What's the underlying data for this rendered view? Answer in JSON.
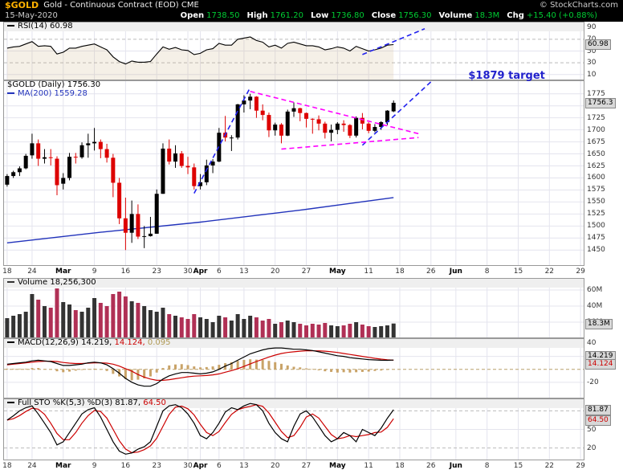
{
  "colors": {
    "up": "#000000",
    "down": "#dd0000",
    "vol_up": "#333333",
    "vol_down": "#b03055",
    "ma": "#2233bb",
    "macd_line": "#000000",
    "macd_signal": "#cc0000",
    "hist": "#c9a368",
    "k": "#000000",
    "d": "#cc0000",
    "grid": "#e4e4ee",
    "dashed_grid": "#bbbbbb",
    "annotation_blue": "#2222ee",
    "annotation_magenta": "#ff00ff",
    "target_text": "#2222cc",
    "header_bg": "#000000",
    "symbol": "#ffb200",
    "quote_value": "#00cc33",
    "box_bg": "#d8d8d8"
  },
  "header": {
    "symbol": "$GOLD",
    "title": "Gold - Continuous Contract (EOD) CME",
    "copyright": "© StockCharts.com",
    "date": "15-May-2020",
    "quote": [
      {
        "label": "Open",
        "value": "1738.50"
      },
      {
        "label": "High",
        "value": "1761.20"
      },
      {
        "label": "Low",
        "value": "1736.80"
      },
      {
        "label": "Close",
        "value": "1756.30"
      },
      {
        "label": "Volume",
        "value": "18.3M"
      },
      {
        "label": "Chg",
        "value": "+15.40 (+0.88%)"
      }
    ]
  },
  "xaxis": {
    "total_slots": 93,
    "ticks": [
      {
        "label": "18",
        "day": 0
      },
      {
        "label": "24",
        "day": 4
      },
      {
        "label": "Mar",
        "day": 9,
        "bold": true
      },
      {
        "label": "9",
        "day": 14
      },
      {
        "label": "16",
        "day": 19
      },
      {
        "label": "23",
        "day": 24
      },
      {
        "label": "30",
        "day": 29
      },
      {
        "label": "Apr",
        "day": 31,
        "bold": true
      },
      {
        "label": "6",
        "day": 34
      },
      {
        "label": "13",
        "day": 38
      },
      {
        "label": "20",
        "day": 43
      },
      {
        "label": "27",
        "day": 48
      },
      {
        "label": "May",
        "day": 53,
        "bold": true
      },
      {
        "label": "11",
        "day": 58
      },
      {
        "label": "18",
        "day": 63
      },
      {
        "label": "26",
        "day": 68
      },
      {
        "label": "Jun",
        "day": 72,
        "bold": true
      },
      {
        "label": "8",
        "day": 77
      },
      {
        "label": "15",
        "day": 82
      },
      {
        "label": "22",
        "day": 87
      },
      {
        "label": "29",
        "day": 92
      }
    ]
  },
  "chart_data": [
    {
      "id": "rsi",
      "type": "line",
      "name": "RSI(14)",
      "ylim": [
        0,
        100
      ],
      "yticks": [
        90,
        70,
        50,
        30,
        10
      ],
      "dashed_levels": [
        70,
        30
      ],
      "last_value": 60.98,
      "last_box": "60.98",
      "legend": [
        {
          "sw": "#000000",
          "parts": [
            {
              "t": "RSI(14) ",
              "c": "#000000"
            },
            {
              "t": "60.98",
              "c": "#000000"
            }
          ]
        }
      ],
      "values": [
        55,
        57,
        58,
        62,
        66,
        58,
        59,
        58,
        45,
        48,
        55,
        55,
        58,
        60,
        62,
        57,
        52,
        40,
        32,
        28,
        33,
        31,
        31,
        32,
        45,
        57,
        53,
        56,
        52,
        51,
        44,
        46,
        52,
        54,
        63,
        60,
        60,
        70,
        72,
        74,
        68,
        65,
        57,
        60,
        55,
        63,
        65,
        62,
        59,
        59,
        57,
        52,
        54,
        57,
        55,
        50,
        58,
        54,
        50,
        52,
        55,
        60,
        60.98
      ],
      "trendlines": [
        {
          "from": {
            "x": 57,
            "y": 44
          },
          "to": {
            "x": 67,
            "y": 88
          },
          "color": "#2222ee"
        }
      ]
    },
    {
      "id": "price",
      "type": "candlestick",
      "name": "$GOLD Daily",
      "ylim": [
        1417,
        1803
      ],
      "yticks": [
        1775,
        1750,
        1725,
        1700,
        1675,
        1650,
        1625,
        1600,
        1575,
        1550,
        1525,
        1500,
        1475,
        1450
      ],
      "last_value": 1756.3,
      "last_box": "1756.3",
      "legend": [
        {
          "parts": [
            {
              "t": "$GOLD (Daily) ",
              "c": "#000000"
            },
            {
              "t": "1756.30",
              "c": "#000000"
            }
          ]
        },
        {
          "sw": "#2233bb",
          "parts": [
            {
              "t": "MA(200) ",
              "c": "#2233bb"
            },
            {
              "t": "1559.28",
              "c": "#2233bb"
            }
          ]
        }
      ],
      "dates": [
        "02-18",
        "02-19",
        "02-20",
        "02-21",
        "02-24",
        "02-25",
        "02-26",
        "02-27",
        "02-28",
        "03-02",
        "03-03",
        "03-04",
        "03-05",
        "03-06",
        "03-09",
        "03-10",
        "03-11",
        "03-12",
        "03-13",
        "03-16",
        "03-17",
        "03-18",
        "03-19",
        "03-20",
        "03-23",
        "03-24",
        "03-25",
        "03-26",
        "03-27",
        "03-30",
        "03-31",
        "04-01",
        "04-02",
        "04-03",
        "04-06",
        "04-07",
        "04-08",
        "04-09",
        "04-13",
        "04-14",
        "04-15",
        "04-16",
        "04-17",
        "04-20",
        "04-21",
        "04-22",
        "04-23",
        "04-24",
        "04-27",
        "04-28",
        "04-29",
        "04-30",
        "05-01",
        "05-04",
        "05-05",
        "05-06",
        "05-07",
        "05-08",
        "05-11",
        "05-12",
        "05-13",
        "05-14",
        "05-15"
      ],
      "ohlc": [
        [
          1586,
          1608,
          1582,
          1604
        ],
        [
          1604,
          1615,
          1600,
          1612
        ],
        [
          1612,
          1624,
          1604,
          1620
        ],
        [
          1620,
          1650,
          1618,
          1646
        ],
        [
          1647,
          1692,
          1640,
          1672
        ],
        [
          1672,
          1680,
          1625,
          1640
        ],
        [
          1640,
          1660,
          1630,
          1643
        ],
        [
          1643,
          1660,
          1626,
          1642
        ],
        [
          1640,
          1645,
          1564,
          1585
        ],
        [
          1588,
          1610,
          1576,
          1600
        ],
        [
          1600,
          1652,
          1595,
          1644
        ],
        [
          1644,
          1652,
          1630,
          1643
        ],
        [
          1643,
          1674,
          1640,
          1668
        ],
        [
          1668,
          1692,
          1642,
          1672
        ],
        [
          1672,
          1704,
          1657,
          1675
        ],
        [
          1675,
          1680,
          1641,
          1660
        ],
        [
          1660,
          1671,
          1632,
          1642
        ],
        [
          1642,
          1650,
          1560,
          1590
        ],
        [
          1590,
          1600,
          1504,
          1516
        ],
        [
          1516,
          1559,
          1450,
          1486
        ],
        [
          1486,
          1553,
          1465,
          1525
        ],
        [
          1525,
          1545,
          1473,
          1478
        ],
        [
          1478,
          1500,
          1454,
          1479
        ],
        [
          1479,
          1519,
          1478,
          1484
        ],
        [
          1484,
          1576,
          1484,
          1567
        ],
        [
          1567,
          1672,
          1567,
          1661
        ],
        [
          1661,
          1680,
          1628,
          1634
        ],
        [
          1634,
          1668,
          1621,
          1651
        ],
        [
          1651,
          1656,
          1621,
          1625
        ],
        [
          1625,
          1644,
          1608,
          1622
        ],
        [
          1622,
          1630,
          1576,
          1583
        ],
        [
          1583,
          1608,
          1576,
          1591
        ],
        [
          1591,
          1638,
          1585,
          1626
        ],
        [
          1626,
          1639,
          1610,
          1634
        ],
        [
          1634,
          1704,
          1633,
          1694
        ],
        [
          1694,
          1729,
          1676,
          1684
        ],
        [
          1684,
          1689,
          1656,
          1684
        ],
        [
          1684,
          1754,
          1680,
          1753
        ],
        [
          1753,
          1772,
          1736,
          1761
        ],
        [
          1761,
          1775,
          1743,
          1769
        ],
        [
          1769,
          1770,
          1725,
          1740
        ],
        [
          1740,
          1753,
          1720,
          1731
        ],
        [
          1731,
          1736,
          1685,
          1699
        ],
        [
          1699,
          1715,
          1688,
          1711
        ],
        [
          1711,
          1714,
          1672,
          1688
        ],
        [
          1688,
          1742,
          1687,
          1738
        ],
        [
          1738,
          1757,
          1727,
          1745
        ],
        [
          1745,
          1746,
          1718,
          1735
        ],
        [
          1735,
          1736,
          1705,
          1723
        ],
        [
          1723,
          1724,
          1692,
          1722
        ],
        [
          1722,
          1730,
          1699,
          1713
        ],
        [
          1713,
          1717,
          1682,
          1694
        ],
        [
          1694,
          1711,
          1676,
          1700
        ],
        [
          1700,
          1716,
          1691,
          1713
        ],
        [
          1713,
          1720,
          1696,
          1710
        ],
        [
          1710,
          1712,
          1683,
          1688
        ],
        [
          1688,
          1728,
          1684,
          1725
        ],
        [
          1725,
          1735,
          1701,
          1713
        ],
        [
          1713,
          1716,
          1693,
          1698
        ],
        [
          1698,
          1712,
          1695,
          1706
        ],
        [
          1706,
          1718,
          1700,
          1716
        ],
        [
          1716,
          1741,
          1710,
          1740
        ],
        [
          1738.5,
          1761.2,
          1736.8,
          1756.3
        ]
      ],
      "ma200": {
        "period": 200,
        "current": 1559.28,
        "points": [
          {
            "d": 0,
            "v": 1465
          },
          {
            "d": 15,
            "v": 1487
          },
          {
            "d": 31,
            "v": 1508
          },
          {
            "d": 47,
            "v": 1533
          },
          {
            "d": 62,
            "v": 1559.28
          }
        ]
      },
      "trendlines": [
        {
          "from": {
            "x": 30,
            "y": 1568
          },
          "to": {
            "x": 39,
            "y": 1788
          },
          "color": "#2222ee"
        },
        {
          "from": {
            "x": 57,
            "y": 1668
          },
          "to": {
            "x": 68,
            "y": 1800
          },
          "color": "#2222ee"
        },
        {
          "from": {
            "x": 39,
            "y": 1780
          },
          "to": {
            "x": 66,
            "y": 1692
          },
          "color": "#ff00ff"
        },
        {
          "from": {
            "x": 44,
            "y": 1660
          },
          "to": {
            "x": 66,
            "y": 1684
          },
          "color": "#ff00ff"
        }
      ],
      "annotation_text": {
        "text": "$1879 target",
        "x": 74,
        "y": 1812,
        "color": "#2222cc"
      }
    },
    {
      "id": "volume",
      "type": "bar",
      "name": "Volume",
      "ylim": [
        0,
        75
      ],
      "yticks": [
        {
          "v": 60,
          "label": "60M"
        },
        {
          "v": 40,
          "label": "40M"
        },
        {
          "v": 20,
          "label": "20M"
        }
      ],
      "last_value": 18.3,
      "last_box": "18.3M",
      "legend": [
        {
          "sw": "#333333",
          "parts": [
            {
              "t": "Volume ",
              "c": "#000000"
            },
            {
              "t": "18,256,300",
              "c": "#000000"
            }
          ]
        }
      ],
      "values_millions": [
        25,
        28,
        30,
        33,
        55,
        48,
        40,
        38,
        62,
        45,
        42,
        35,
        33,
        38,
        50,
        44,
        40,
        55,
        58,
        52,
        46,
        44,
        40,
        35,
        33,
        38,
        30,
        28,
        26,
        24,
        30,
        26,
        24,
        20,
        28,
        26,
        22,
        30,
        24,
        28,
        26,
        22,
        24,
        18,
        20,
        22,
        20,
        18,
        16,
        18,
        17,
        19,
        16,
        15,
        16,
        18,
        20,
        17,
        15,
        14,
        15,
        16,
        18.3
      ]
    },
    {
      "id": "macd",
      "type": "line",
      "name": "MACD(12,26,9)",
      "ylim": [
        -45,
        48
      ],
      "yticks": [
        40,
        20,
        -20
      ],
      "zero_dashed": true,
      "legend": [
        {
          "sw": "#000000",
          "parts": [
            {
              "t": "MACD(12,26,9) ",
              "c": "#000000"
            },
            {
              "t": "14.219, ",
              "c": "#000000"
            },
            {
              "t": "14.124, ",
              "c": "#cc0000"
            },
            {
              "t": "0.095",
              "c": "#b09a55"
            }
          ]
        }
      ],
      "macd": [
        8,
        9,
        10,
        11,
        13,
        14,
        13,
        12,
        9,
        6,
        6,
        7,
        8,
        10,
        11,
        10,
        7,
        1,
        -6,
        -14,
        -20,
        -24,
        -26,
        -26,
        -22,
        -15,
        -10,
        -7,
        -5,
        -5,
        -6,
        -7,
        -6,
        -4,
        0,
        5,
        9,
        14,
        19,
        24,
        27,
        30,
        32,
        33,
        33,
        32,
        31,
        31,
        30,
        29,
        27,
        25,
        23,
        21,
        20,
        18,
        17,
        16,
        15,
        14.5,
        14,
        13.9,
        14.219
      ],
      "signal": [
        7,
        8,
        9,
        10,
        11,
        12,
        12.5,
        12.5,
        12,
        10.5,
        9.5,
        9,
        9,
        9.5,
        10,
        10,
        9.5,
        8,
        5,
        1,
        -3,
        -8,
        -12,
        -15,
        -17,
        -17,
        -16,
        -14.5,
        -13,
        -11.5,
        -10.5,
        -10,
        -9.5,
        -8.5,
        -7,
        -4.5,
        -2,
        1,
        4.5,
        8.5,
        12,
        15.5,
        19,
        22,
        24.5,
        26,
        27,
        28,
        28.5,
        28.5,
        28.5,
        28,
        27,
        26,
        24.5,
        23,
        21.5,
        20,
        18.5,
        17,
        15.8,
        14.8,
        14.124
      ],
      "last_boxes": [
        {
          "v": 14.219,
          "label": "14.219",
          "c": "#000000"
        },
        {
          "v": 14.124,
          "label": "14.124",
          "c": "#cc0000"
        }
      ]
    },
    {
      "id": "sto",
      "type": "line",
      "name": "Full STO %K(5,3) %D(3)",
      "ylim": [
        0,
        100
      ],
      "yticks": [
        80,
        50,
        20
      ],
      "dashed_levels": [
        80,
        20
      ],
      "legend": [
        {
          "sw": "#000000",
          "parts": [
            {
              "t": "Full STO %K(5,3) %D(3) ",
              "c": "#000000"
            },
            {
              "t": "81.87, ",
              "c": "#000000"
            },
            {
              "t": "64.50",
              "c": "#cc0000"
            }
          ]
        }
      ],
      "k": [
        65,
        72,
        80,
        85,
        88,
        75,
        60,
        45,
        25,
        30,
        45,
        60,
        75,
        82,
        85,
        70,
        50,
        30,
        15,
        10,
        12,
        18,
        22,
        30,
        55,
        80,
        88,
        90,
        85,
        75,
        60,
        40,
        35,
        45,
        60,
        78,
        85,
        82,
        88,
        92,
        90,
        80,
        60,
        45,
        35,
        30,
        55,
        75,
        80,
        70,
        55,
        40,
        30,
        35,
        45,
        40,
        30,
        50,
        45,
        40,
        52,
        68,
        81.87
      ],
      "last_boxes": [
        {
          "v": 81.87,
          "label": "81.87",
          "c": "#000000"
        },
        {
          "v": 64.5,
          "label": "64.50",
          "c": "#cc0000"
        }
      ]
    }
  ]
}
